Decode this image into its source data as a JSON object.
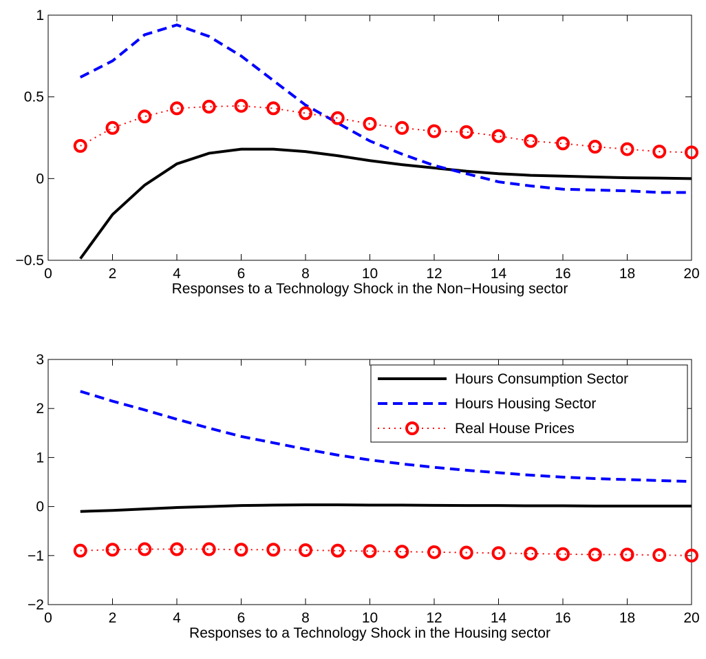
{
  "chart_data": [
    {
      "type": "line",
      "xlabel": "Responses to a Technology Shock in the Non−Housing sector",
      "x": [
        1,
        2,
        3,
        4,
        5,
        6,
        7,
        8,
        9,
        10,
        11,
        12,
        13,
        14,
        15,
        16,
        17,
        18,
        19,
        20
      ],
      "xlim": [
        0,
        20
      ],
      "xticks": [
        0,
        2,
        4,
        6,
        8,
        10,
        12,
        14,
        16,
        18,
        20
      ],
      "ylim": [
        -0.5,
        1
      ],
      "yticks": [
        {
          "value": -0.5,
          "label": "−0.5"
        },
        0,
        0.5,
        1
      ],
      "series": [
        {
          "color": "#000000",
          "style": "solid",
          "values": [
            -0.49,
            -0.22,
            -0.04,
            0.09,
            0.155,
            0.18,
            0.18,
            0.165,
            0.14,
            0.11,
            0.085,
            0.065,
            0.045,
            0.03,
            0.02,
            0.015,
            0.01,
            0.005,
            0.003,
            0.0
          ]
        },
        {
          "color": "#0000ff",
          "style": "dashed",
          "values": [
            0.62,
            0.72,
            0.88,
            0.94,
            0.87,
            0.75,
            0.6,
            0.45,
            0.34,
            0.23,
            0.15,
            0.08,
            0.03,
            -0.02,
            -0.045,
            -0.065,
            -0.07,
            -0.075,
            -0.085,
            -0.085
          ]
        },
        {
          "color": "#ff0000",
          "style": "dotted",
          "marker": "o",
          "values": [
            0.2,
            0.31,
            0.38,
            0.43,
            0.44,
            0.445,
            0.43,
            0.4,
            0.37,
            0.335,
            0.31,
            0.29,
            0.285,
            0.26,
            0.23,
            0.215,
            0.195,
            0.18,
            0.165,
            0.16
          ]
        }
      ]
    },
    {
      "type": "line",
      "xlabel": "Responses to a Technology Shock in the Housing sector",
      "x": [
        1,
        2,
        3,
        4,
        5,
        6,
        7,
        8,
        9,
        10,
        11,
        12,
        13,
        14,
        15,
        16,
        17,
        18,
        19,
        20
      ],
      "xlim": [
        0,
        20
      ],
      "xticks": [
        0,
        2,
        4,
        6,
        8,
        10,
        12,
        14,
        16,
        18,
        20
      ],
      "ylim": [
        -2,
        3
      ],
      "yticks": [
        {
          "value": -2,
          "label": "−2"
        },
        {
          "value": -1,
          "label": "−1"
        },
        0,
        1,
        2,
        3
      ],
      "legend": "upper right",
      "series": [
        {
          "name": "Hours Consumption Sector",
          "color": "#000000",
          "style": "solid",
          "values": [
            -0.1,
            -0.08,
            -0.05,
            -0.02,
            0.0,
            0.02,
            0.03,
            0.035,
            0.035,
            0.03,
            0.03,
            0.025,
            0.02,
            0.02,
            0.015,
            0.015,
            0.01,
            0.01,
            0.01,
            0.01
          ]
        },
        {
          "name": "Hours Housing Sector",
          "color": "#0000ff",
          "style": "dashed",
          "values": [
            2.35,
            2.15,
            1.97,
            1.78,
            1.6,
            1.43,
            1.3,
            1.17,
            1.05,
            0.95,
            0.87,
            0.8,
            0.74,
            0.69,
            0.64,
            0.6,
            0.57,
            0.55,
            0.53,
            0.51
          ]
        },
        {
          "name": "Real House Prices",
          "color": "#ff0000",
          "style": "dotted",
          "marker": "o",
          "values": [
            -0.9,
            -0.88,
            -0.87,
            -0.87,
            -0.87,
            -0.88,
            -0.88,
            -0.89,
            -0.9,
            -0.91,
            -0.92,
            -0.93,
            -0.94,
            -0.95,
            -0.96,
            -0.97,
            -0.98,
            -0.98,
            -0.99,
            -1.0
          ]
        }
      ]
    }
  ]
}
